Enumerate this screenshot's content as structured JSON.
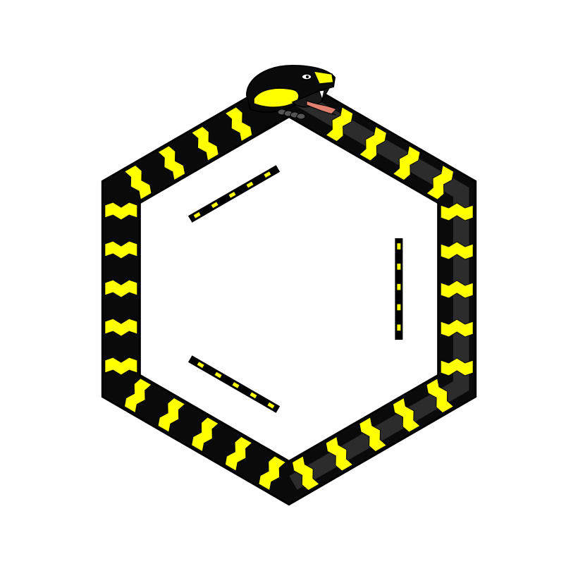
{
  "illustration": {
    "subject": "ouroboros-snake-benzene-ring",
    "colors": {
      "background": "#ffffff",
      "body_dark": "#0a0a0a",
      "body_light": "#3a3a3a",
      "band": "#ffff00",
      "outline": "#000000",
      "eye": "#ffffff",
      "mouth": "#1a1a1a",
      "tongue": "#e0806e",
      "fang": "#ffffff"
    },
    "ring": {
      "sides": 6,
      "snake_bands_per_side": 5,
      "inner_double_bonds": 3,
      "bond_dashes": 5
    }
  }
}
